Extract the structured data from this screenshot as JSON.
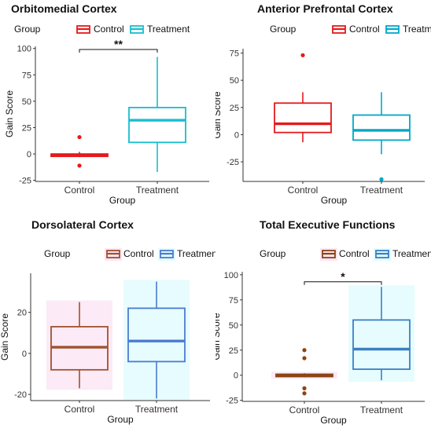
{
  "charts": [
    {
      "title": "Orbitomedial Cortex",
      "legend_title": "Group",
      "legend_labels": [
        "Control",
        "Treatment"
      ],
      "ylabel": "Gain Score",
      "xlabel": "Group",
      "significance": "**"
    },
    {
      "title": "Anterior Prefrontal Cortex",
      "legend_title": "Group",
      "legend_labels": [
        "Control",
        "Treatment"
      ],
      "ylabel": "Gain Score",
      "xlabel": "Group",
      "significance": ""
    },
    {
      "title": "Dorsolateral Cortex",
      "legend_title": "Group",
      "legend_labels": [
        "Control",
        "Treatment"
      ],
      "ylabel": "Gain Score",
      "xlabel": "Group",
      "significance": ""
    },
    {
      "title": "Total Executive Functions",
      "legend_title": "Group",
      "legend_labels": [
        "Control",
        "Treatment"
      ],
      "ylabel": "Gain Score",
      "xlabel": "Group",
      "significance": "*"
    }
  ],
  "chart_data": [
    {
      "type": "boxplot",
      "title": "Orbitomedial Cortex",
      "xlabel": "Group",
      "ylabel": "Gain Score",
      "categories": [
        "Control",
        "Treatment"
      ],
      "ylim": [
        -26,
        102
      ],
      "yticks": [
        -25,
        0,
        25,
        50,
        75,
        100
      ],
      "grid": false,
      "legend": "top",
      "colors": [
        "#e41a1c",
        "#17becf"
      ],
      "boxes": [
        {
          "group": "Control",
          "min": -3,
          "q1": -2,
          "median": -1,
          "q3": 0,
          "max": 2,
          "outliers": [
            16,
            -11
          ]
        },
        {
          "group": "Treatment",
          "min": -17,
          "q1": 11,
          "median": 32,
          "q3": 44,
          "max": 92,
          "outliers": []
        }
      ],
      "annotation": {
        "text": "**",
        "between": [
          "Control",
          "Treatment"
        ],
        "y": 99
      }
    },
    {
      "type": "boxplot",
      "title": "Anterior Prefrontal Cortex",
      "xlabel": "Group",
      "ylabel": "Gain Score",
      "categories": [
        "Control",
        "Treatment"
      ],
      "ylim": [
        -43,
        79
      ],
      "yticks": [
        -25,
        0,
        25,
        50,
        75
      ],
      "grid": false,
      "legend": "top",
      "colors": [
        "#e41a1c",
        "#00a8c8"
      ],
      "boxes": [
        {
          "group": "Control",
          "min": -7,
          "q1": 2,
          "median": 10,
          "q3": 29,
          "max": 39,
          "outliers": [
            73
          ]
        },
        {
          "group": "Treatment",
          "min": -18,
          "q1": -5,
          "median": 4,
          "q3": 18,
          "max": 39,
          "outliers": [
            -41
          ]
        }
      ]
    },
    {
      "type": "boxplot",
      "title": "Dorsolateral Cortex",
      "xlabel": "Group",
      "ylabel": "Gain Score",
      "categories": [
        "Control",
        "Treatment"
      ],
      "ylim": [
        -23,
        39
      ],
      "yticks": [
        -20,
        0,
        20
      ],
      "grid": false,
      "legend": "top",
      "colors": [
        "#a0522d",
        "#4a7bd0"
      ],
      "boxes": [
        {
          "group": "Control",
          "min": -17,
          "q1": -8,
          "median": 3,
          "q3": 13,
          "max": 25,
          "outliers": []
        },
        {
          "group": "Treatment",
          "min": -22,
          "q1": -4,
          "median": 6,
          "q3": 22,
          "max": 35,
          "outliers": []
        }
      ]
    },
    {
      "type": "boxplot",
      "title": "Total Executive Functions",
      "xlabel": "Group",
      "ylabel": "Gain Score",
      "categories": [
        "Control",
        "Treatment"
      ],
      "ylim": [
        -26,
        103
      ],
      "yticks": [
        -25,
        0,
        25,
        50,
        75,
        100
      ],
      "grid": false,
      "legend": "top",
      "colors": [
        "#8b4513",
        "#3a7fc4"
      ],
      "boxes": [
        {
          "group": "Control",
          "min": -2,
          "q1": -1,
          "median": 0,
          "q3": 1,
          "max": 2,
          "outliers": [
            25,
            17,
            -13,
            -18
          ]
        },
        {
          "group": "Treatment",
          "min": -5,
          "q1": 6,
          "median": 26,
          "q3": 55,
          "max": 88,
          "outliers": []
        }
      ],
      "annotation": {
        "text": "*",
        "between": [
          "Control",
          "Treatment"
        ],
        "y": 93
      }
    }
  ]
}
